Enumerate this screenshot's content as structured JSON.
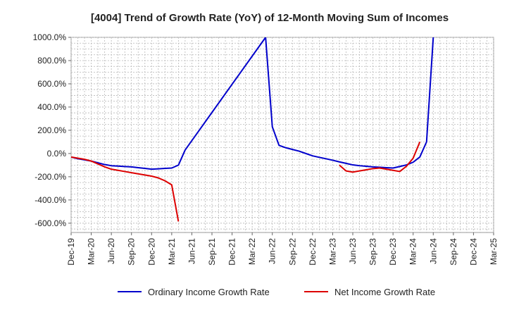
{
  "chart_data": {
    "type": "line",
    "title": "[4004]  Trend of Growth Rate (YoY) of 12-Month Moving Sum of Incomes",
    "xlabel": "",
    "ylabel": "",
    "ylim": [
      -680,
      1000
    ],
    "yticks": [
      1000,
      800,
      600,
      400,
      200,
      0,
      -200,
      -400,
      -600
    ],
    "ytick_labels": [
      "1000.0%",
      "800.0%",
      "600.0%",
      "400.0%",
      "200.0%",
      "0.0%",
      "-200.0%",
      "-400.0%",
      "-600.0%"
    ],
    "x_ticks": [
      "Dec-19",
      "Mar-20",
      "Jun-20",
      "Sep-20",
      "Dec-20",
      "Mar-21",
      "Jun-21",
      "Sep-21",
      "Dec-21",
      "Mar-22",
      "Jun-22",
      "Sep-22",
      "Dec-22",
      "Mar-23",
      "Jun-23",
      "Sep-23",
      "Dec-23",
      "Mar-24",
      "Jun-24",
      "Sep-24",
      "Dec-24",
      "Mar-25"
    ],
    "grid": true,
    "legend_position": "bottom",
    "series": [
      {
        "name": "Ordinary Income Growth Rate",
        "color": "#0000cc",
        "points": [
          {
            "x": "Dec-19",
            "y": -30
          },
          {
            "x": "Jan-20",
            "y": -45
          },
          {
            "x": "Feb-20",
            "y": -55
          },
          {
            "x": "Mar-20",
            "y": -65
          },
          {
            "x": "Apr-20",
            "y": -80
          },
          {
            "x": "May-20",
            "y": -95
          },
          {
            "x": "Jun-20",
            "y": -105
          },
          {
            "x": "Jul-20",
            "y": -108
          },
          {
            "x": "Aug-20",
            "y": -112
          },
          {
            "x": "Sep-20",
            "y": -115
          },
          {
            "x": "Oct-20",
            "y": -122
          },
          {
            "x": "Nov-20",
            "y": -128
          },
          {
            "x": "Dec-20",
            "y": -135
          },
          {
            "x": "Jan-21",
            "y": -132
          },
          {
            "x": "Feb-21",
            "y": -128
          },
          {
            "x": "Mar-21",
            "y": -125
          },
          {
            "x": "Apr-21",
            "y": -100
          },
          {
            "x": "May-21",
            "y": 30
          },
          {
            "x": "May-22",
            "y": 1000
          },
          {
            "x": "Jun-22",
            "y": 230
          },
          {
            "x": "Jul-22",
            "y": 70
          },
          {
            "x": "Aug-22",
            "y": 50
          },
          {
            "x": "Sep-22",
            "y": 35
          },
          {
            "x": "Oct-22",
            "y": 20
          },
          {
            "x": "Nov-22",
            "y": 0
          },
          {
            "x": "Dec-22",
            "y": -20
          },
          {
            "x": "Jan-23",
            "y": -33
          },
          {
            "x": "Feb-23",
            "y": -45
          },
          {
            "x": "Mar-23",
            "y": -58
          },
          {
            "x": "Apr-23",
            "y": -72
          },
          {
            "x": "May-23",
            "y": -85
          },
          {
            "x": "Jun-23",
            "y": -98
          },
          {
            "x": "Jul-23",
            "y": -105
          },
          {
            "x": "Aug-23",
            "y": -110
          },
          {
            "x": "Sep-23",
            "y": -115
          },
          {
            "x": "Oct-23",
            "y": -118
          },
          {
            "x": "Nov-23",
            "y": -122
          },
          {
            "x": "Dec-23",
            "y": -125
          },
          {
            "x": "Jan-24",
            "y": -112
          },
          {
            "x": "Feb-24",
            "y": -98
          },
          {
            "x": "Mar-24",
            "y": -75
          },
          {
            "x": "Apr-24",
            "y": -30
          },
          {
            "x": "May-24",
            "y": 100
          },
          {
            "x": "Jun-24",
            "y": 1000
          }
        ]
      },
      {
        "name": "Net Income Growth Rate",
        "color": "#dd0000",
        "segments": [
          [
            {
              "x": "Dec-19",
              "y": -30
            },
            {
              "x": "Jan-20",
              "y": -40
            },
            {
              "x": "Feb-20",
              "y": -50
            },
            {
              "x": "Mar-20",
              "y": -65
            },
            {
              "x": "Apr-20",
              "y": -90
            },
            {
              "x": "May-20",
              "y": -115
            },
            {
              "x": "Jun-20",
              "y": -135
            },
            {
              "x": "Jul-20",
              "y": -145
            },
            {
              "x": "Aug-20",
              "y": -155
            },
            {
              "x": "Sep-20",
              "y": -165
            },
            {
              "x": "Oct-20",
              "y": -175
            },
            {
              "x": "Nov-20",
              "y": -185
            },
            {
              "x": "Dec-20",
              "y": -195
            },
            {
              "x": "Jan-21",
              "y": -210
            },
            {
              "x": "Feb-21",
              "y": -235
            },
            {
              "x": "Mar-21",
              "y": -270
            },
            {
              "x": "Apr-21",
              "y": -585
            }
          ],
          [
            {
              "x": "Apr-23",
              "y": -100
            },
            {
              "x": "May-23",
              "y": -150
            },
            {
              "x": "Jun-23",
              "y": -160
            },
            {
              "x": "Jul-23",
              "y": -150
            },
            {
              "x": "Aug-23",
              "y": -140
            },
            {
              "x": "Sep-23",
              "y": -130
            },
            {
              "x": "Oct-23",
              "y": -125
            },
            {
              "x": "Nov-23",
              "y": -135
            },
            {
              "x": "Dec-23",
              "y": -145
            },
            {
              "x": "Jan-24",
              "y": -155
            },
            {
              "x": "Feb-24",
              "y": -110
            },
            {
              "x": "Mar-24",
              "y": -40
            },
            {
              "x": "Apr-24",
              "y": 100
            }
          ]
        ]
      }
    ]
  }
}
